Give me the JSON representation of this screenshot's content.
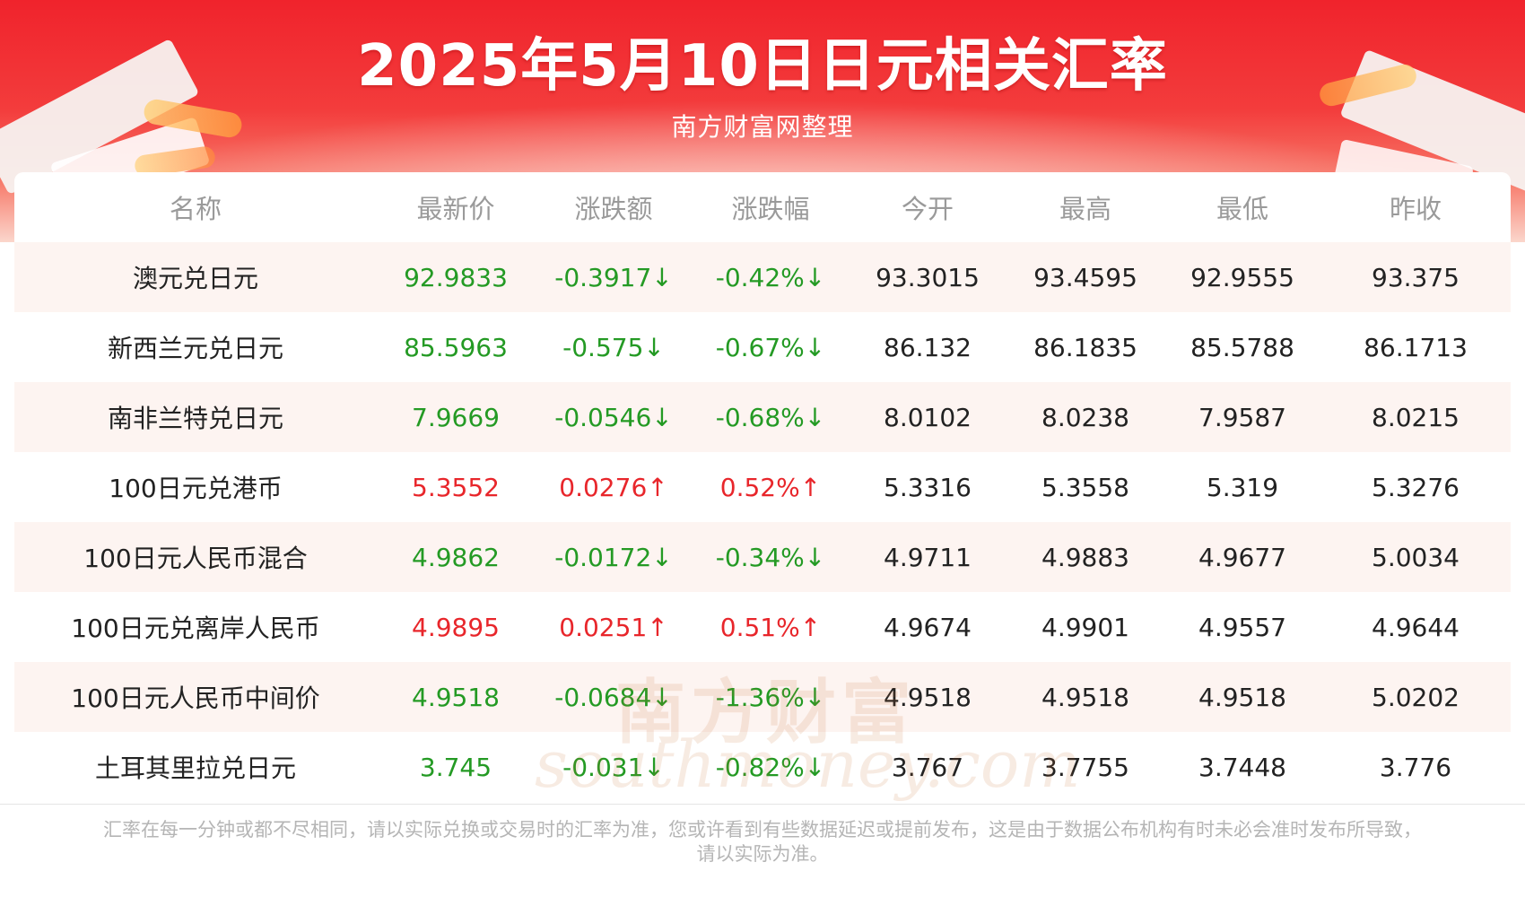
{
  "header": {
    "title": "2025年5月10日日元相关汇率",
    "subtitle": "南方财富网整理"
  },
  "table": {
    "columns": [
      "名称",
      "最新价",
      "涨跌额",
      "涨跌幅",
      "今开",
      "最高",
      "最低",
      "昨收"
    ],
    "rows": [
      {
        "name": "澳元兑日元",
        "latest": "92.9833",
        "change": "-0.3917↓",
        "change_pct": "-0.42%↓",
        "open": "93.3015",
        "high": "93.4595",
        "low": "92.9555",
        "prev_close": "93.375",
        "trend": "down"
      },
      {
        "name": "新西兰元兑日元",
        "latest": "85.5963",
        "change": "-0.575↓",
        "change_pct": "-0.67%↓",
        "open": "86.132",
        "high": "86.1835",
        "low": "85.5788",
        "prev_close": "86.1713",
        "trend": "down"
      },
      {
        "name": "南非兰特兑日元",
        "latest": "7.9669",
        "change": "-0.0546↓",
        "change_pct": "-0.68%↓",
        "open": "8.0102",
        "high": "8.0238",
        "low": "7.9587",
        "prev_close": "8.0215",
        "trend": "down"
      },
      {
        "name": "100日元兑港币",
        "latest": "5.3552",
        "change": "0.0276↑",
        "change_pct": "0.52%↑",
        "open": "5.3316",
        "high": "5.3558",
        "low": "5.319",
        "prev_close": "5.3276",
        "trend": "up"
      },
      {
        "name": "100日元人民币混合",
        "latest": "4.9862",
        "change": "-0.0172↓",
        "change_pct": "-0.34%↓",
        "open": "4.9711",
        "high": "4.9883",
        "low": "4.9677",
        "prev_close": "5.0034",
        "trend": "down"
      },
      {
        "name": "100日元兑离岸人民币",
        "latest": "4.9895",
        "change": "0.0251↑",
        "change_pct": "0.51%↑",
        "open": "4.9674",
        "high": "4.9901",
        "low": "4.9557",
        "prev_close": "4.9644",
        "trend": "up"
      },
      {
        "name": "100日元人民币中间价",
        "latest": "4.9518",
        "change": "-0.0684↓",
        "change_pct": "-1.36%↓",
        "open": "4.9518",
        "high": "4.9518",
        "low": "4.9518",
        "prev_close": "5.0202",
        "trend": "down"
      },
      {
        "name": "土耳其里拉兑日元",
        "latest": "3.745",
        "change": "-0.031↓",
        "change_pct": "-0.82%↓",
        "open": "3.767",
        "high": "3.7755",
        "low": "3.7448",
        "prev_close": "3.776",
        "trend": "down"
      }
    ]
  },
  "watermark": {
    "cn": "南方财富",
    "en": "southmoney.com"
  },
  "colors": {
    "banner_red": "#f0232c",
    "down_green": "#249a24",
    "up_red": "#e8262b",
    "row_tint": "#fdf4f1"
  },
  "footnote": {
    "line1": "汇率在每一分钟或都不尽相同，请以实际兑换或交易时的汇率为准，您或许看到有些数据延迟或提前发布，这是由于数据公布机构有时未必会准时发布所导致，",
    "line2": "请以实际为准。"
  }
}
